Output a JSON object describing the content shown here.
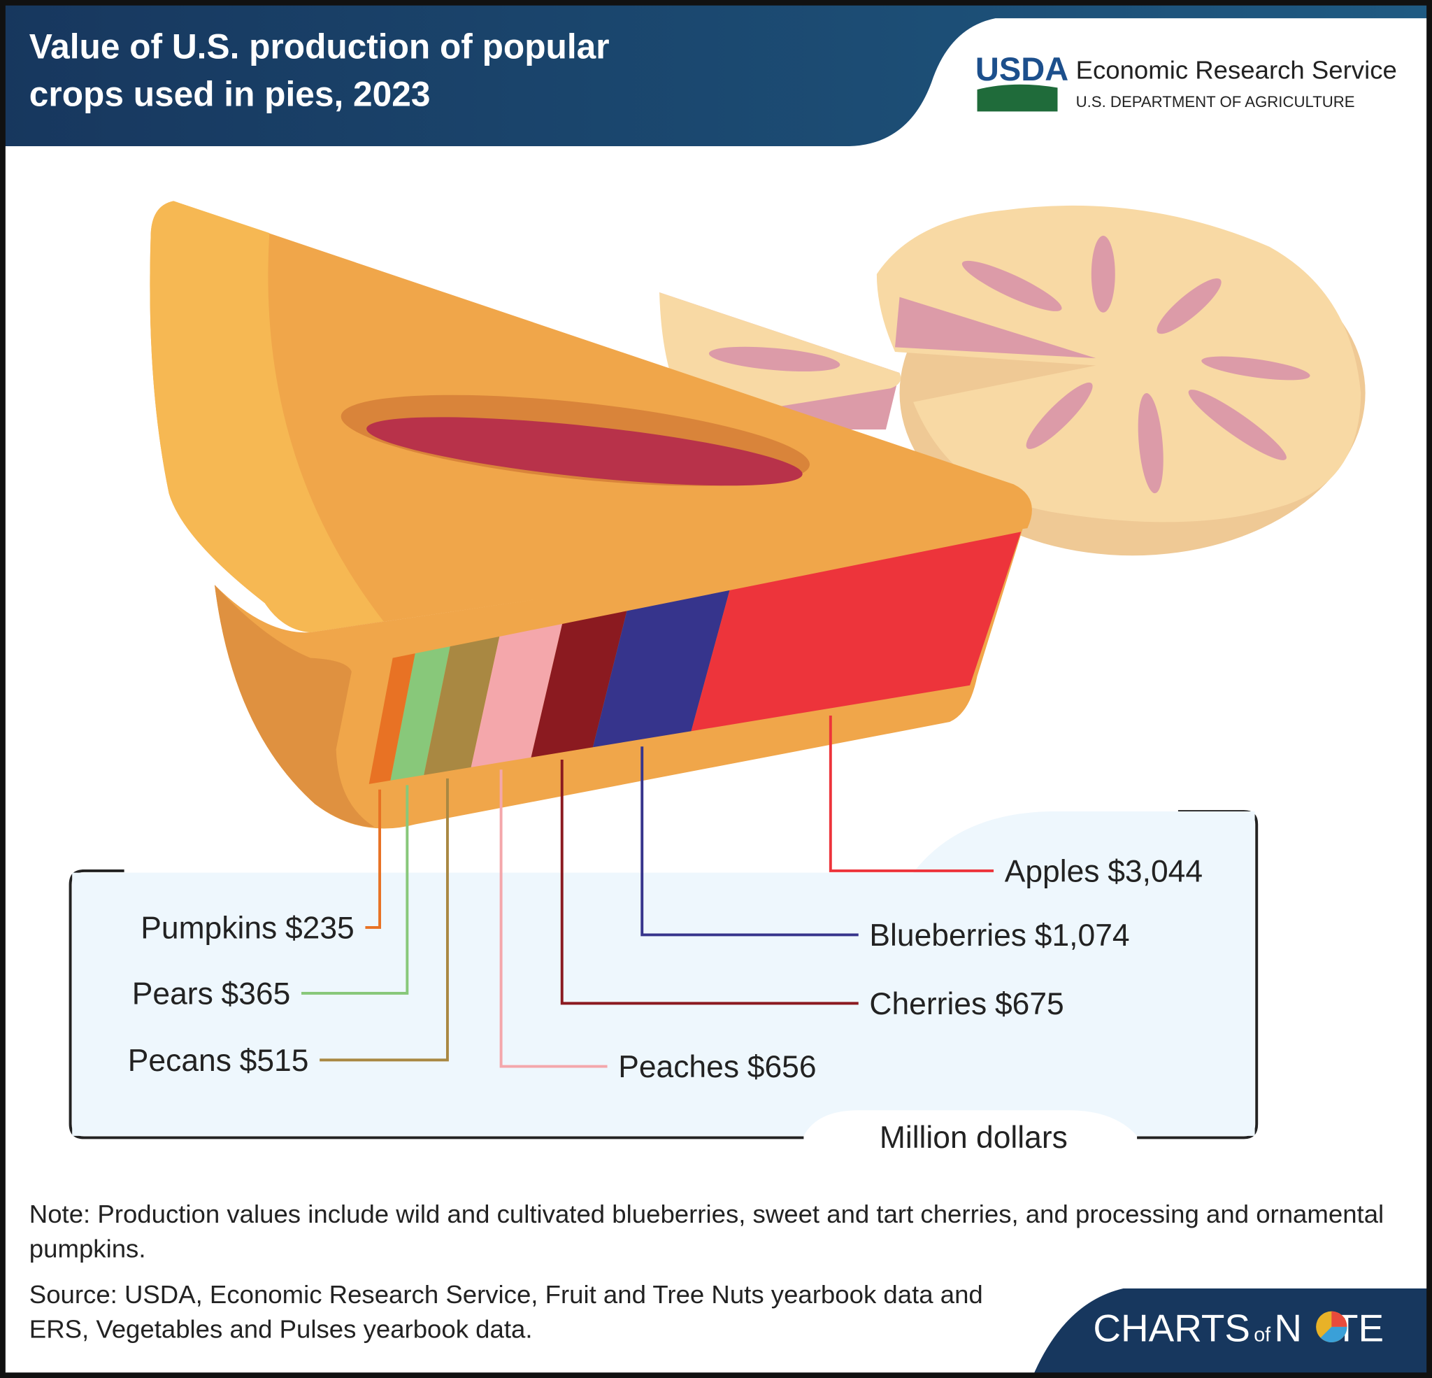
{
  "header": {
    "title": "Value of U.S. production of popular crops used in pies, 2023",
    "logo": {
      "mark": "USDA",
      "agency": "Economic Research Service",
      "department": "U.S. DEPARTMENT OF AGRICULTURE"
    }
  },
  "chart_data": {
    "type": "stacked-slice",
    "unit_label": "Million dollars",
    "series": [
      {
        "name": "Pumpkins",
        "color": "#e87224",
        "values": [
          235
        ],
        "value_labels": [
          "$235"
        ]
      },
      {
        "name": "Pears",
        "color": "#88c87a",
        "values": [
          365
        ],
        "value_labels": [
          "$365"
        ]
      },
      {
        "name": "Pecans",
        "color": "#a98842",
        "values": [
          515
        ],
        "value_labels": [
          "$515"
        ]
      },
      {
        "name": "Peaches",
        "color": "#f4a7ab",
        "values": [
          656
        ],
        "value_labels": [
          "$656"
        ]
      },
      {
        "name": "Cherries",
        "color": "#8b1a20",
        "values": [
          675
        ],
        "value_labels": [
          "$675"
        ]
      },
      {
        "name": "Blueberries",
        "color": "#36348c",
        "values": [
          1074
        ],
        "value_labels": [
          "$1,074"
        ]
      },
      {
        "name": "Apples",
        "color": "#ed343b",
        "values": [
          3044
        ],
        "value_labels": [
          "$3,044"
        ]
      }
    ]
  },
  "footer": {
    "note": "Note: Production values include wild and cultivated blueberries, sweet and tart cherries, and processing and ornamental pumpkins.",
    "source": "Source: USDA, Economic Research Service, Fruit and Tree Nuts yearbook data and ERS, Vegetables and Pulses yearbook data.",
    "brand": [
      "CHARTS",
      "of",
      "N",
      "TE"
    ]
  }
}
